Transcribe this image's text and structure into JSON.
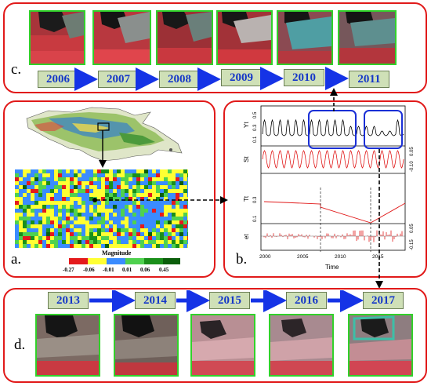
{
  "panels": {
    "a_label": "a.",
    "b_label": "b.",
    "c_label": "c.",
    "d_label": "d."
  },
  "years_c": [
    "2006",
    "2007",
    "2008",
    "2009",
    "2010",
    "2011"
  ],
  "years_d": [
    "2013",
    "2014",
    "2015",
    "2016",
    "2017"
  ],
  "legend": {
    "title": "Magnitude",
    "values": [
      "-0.27",
      "-0.06",
      "-0.01",
      "0.01",
      "0.06",
      "0.45"
    ],
    "colors": [
      "#e41a1c",
      "#ffff33",
      "#3a8cff",
      "#4fd14f",
      "#1a8f1a",
      "#0b5e0b"
    ]
  },
  "timeseries": {
    "ylabels": [
      "Yt",
      "St",
      "Tt",
      "et"
    ],
    "xlabel": "Time",
    "xticks": [
      "2000",
      "2005",
      "2010",
      "2015"
    ],
    "yt_ticks": [
      "0.1",
      "0.3",
      "0.5"
    ],
    "st_ticks": [
      "0.05",
      "-0.10"
    ],
    "tt_ticks": [
      "0.1",
      "0.3"
    ],
    "et_ticks": [
      "0.05",
      "-0.15"
    ]
  }
}
